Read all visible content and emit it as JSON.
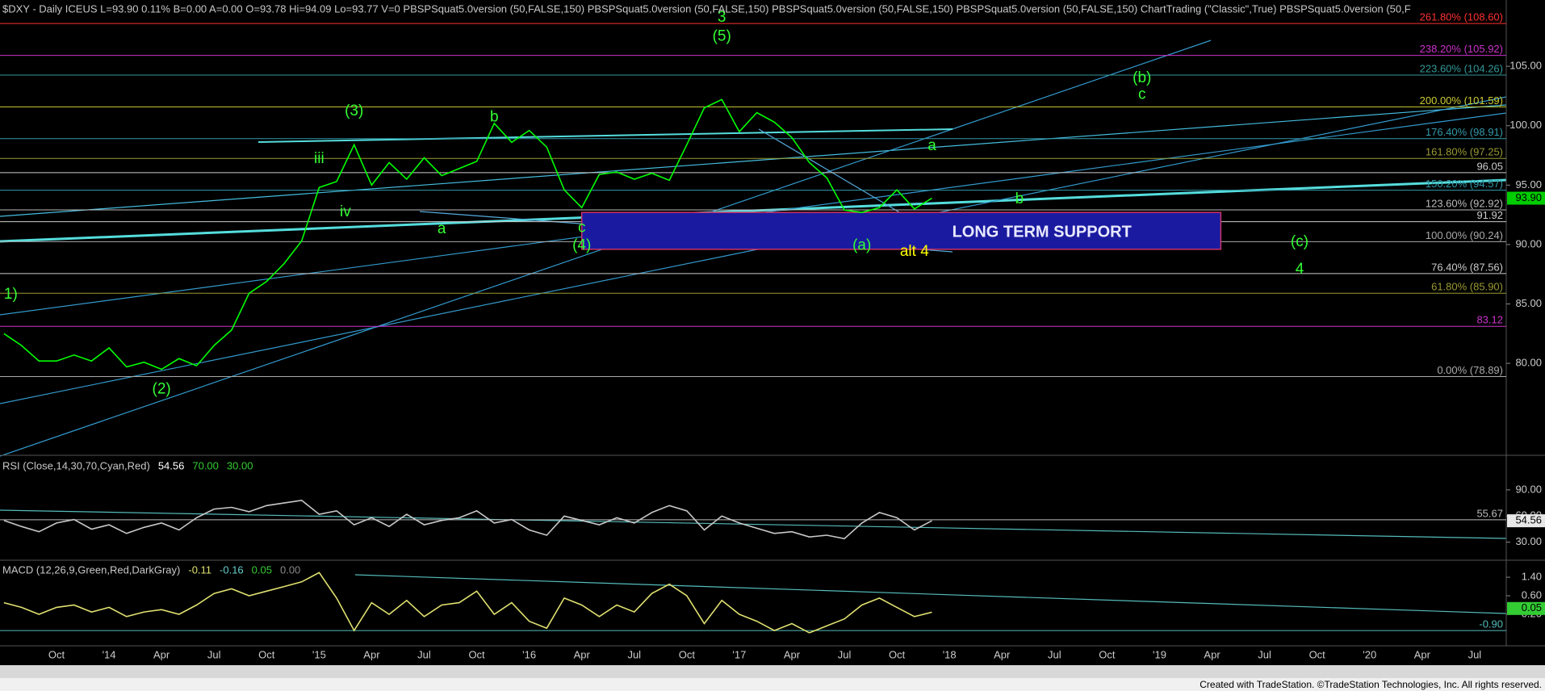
{
  "chart_data": [
    {
      "type": "line",
      "title": "$DXY - Daily ICEUS L=93.90 0.11% B=0.00 A=0.00 O=93.78 Hi=94.09 Lo=93.77 V=0 PBSPSquat5.0version (50,FALSE,150) PBSPSquat5.0version (50,FALSE,150) PBSPSquat5.0version (50,FALSE,150) PBSPSquat5.0version (50,FALSE,150) ChartTrading (\"Classic\",True) PBSPSquat5.0version (50,F",
      "color": "#00ff00",
      "values": [
        82.5,
        81.5,
        80.2,
        80.2,
        80.7,
        80.2,
        81.3,
        79.7,
        80.1,
        79.5,
        80.4,
        79.8,
        81.5,
        82.8,
        85.9,
        86.9,
        88.4,
        90.3,
        94.8,
        95.3,
        98.4,
        95.0,
        96.9,
        95.5,
        97.3,
        95.8,
        96.4,
        97.0,
        100.2,
        98.6,
        99.6,
        98.2,
        94.6,
        93.1,
        95.9,
        96.1,
        95.5,
        96.0,
        95.4,
        98.4,
        101.5,
        102.2,
        99.5,
        101.1,
        100.3,
        99.0,
        96.9,
        95.6,
        92.9,
        92.7,
        93.1,
        94.6,
        93.0,
        93.9,
        null,
        null,
        null,
        null,
        null,
        null,
        null,
        null,
        null,
        null,
        null,
        null,
        null,
        null,
        null,
        null,
        null,
        null,
        null,
        null,
        null,
        null,
        null,
        null,
        null,
        null,
        null,
        null,
        null,
        null,
        null,
        null
      ],
      "ylim": [
        72.4,
        109.9
      ],
      "yticks": [
        {
          "value": 80,
          "label": "80.00"
        },
        {
          "value": 85,
          "label": "85.00"
        },
        {
          "value": 90,
          "label": "90.00"
        },
        {
          "value": 95,
          "label": "95.00"
        },
        {
          "value": 100,
          "label": "100.00"
        },
        {
          "value": 105,
          "label": "105.00"
        }
      ],
      "tag": {
        "value": 93.9,
        "label": "93.90",
        "color": "#00cc00"
      },
      "levels": [
        {
          "value": 108.6,
          "label": "261.80% (108.60)",
          "color": "#ff3030"
        },
        {
          "value": 105.92,
          "label": "238.20% (105.92)",
          "color": "#cc33cc"
        },
        {
          "value": 104.26,
          "label": "223.60% (104.26)",
          "color": "#339999"
        },
        {
          "value": 101.59,
          "label": "200.00% (101.59)",
          "color": "#cccc33"
        },
        {
          "value": 98.91,
          "label": "176.40% (98.91)",
          "color": "#3399aa"
        },
        {
          "value": 97.25,
          "label": "161.80% (97.25)",
          "color": "#999933"
        },
        {
          "value": 96.05,
          "label": "96.05",
          "color": "#cccccc"
        },
        {
          "value": 94.57,
          "label": "150.20% (94.57)",
          "color": "#3399aa"
        },
        {
          "value": 92.92,
          "label": "123.60% (92.92)",
          "color": "#bbbbbb"
        },
        {
          "value": 91.92,
          "label": "91.92",
          "color": "#cccccc"
        },
        {
          "value": 90.24,
          "label": "100.00% (90.24)",
          "color": "#aaaaaa"
        },
        {
          "value": 87.56,
          "label": "76.40% (87.56)",
          "color": "#cccccc"
        },
        {
          "value": 85.9,
          "label": "61.80% (85.90)",
          "color": "#999933"
        },
        {
          "value": 83.12,
          "label": "83.12",
          "color": "#cc33cc"
        },
        {
          "value": 78.89,
          "label": "0.00% (78.89)",
          "color": "#aaaaaa"
        }
      ],
      "zones": [
        {
          "label": "LONG TERM SUPPORT",
          "x0": 33,
          "x1": 69.5,
          "ymin": 89.6,
          "ymax": 92.7,
          "color": "#1a1aa0"
        }
      ],
      "annotations": [
        {
          "text": "1)",
          "x": 0,
          "y": 85.8,
          "color": "#33ff33"
        },
        {
          "text": "(2)",
          "x": 9,
          "y": 77.8,
          "color": "#33ff33"
        },
        {
          "text": "(3)",
          "x": 20,
          "y": 101.2,
          "color": "#33ff33"
        },
        {
          "text": "iii",
          "x": 18,
          "y": 97.2,
          "color": "#33ff33"
        },
        {
          "text": "iv",
          "x": 19.5,
          "y": 92.7,
          "color": "#33ff33"
        },
        {
          "text": "a",
          "x": 25,
          "y": 91.3,
          "color": "#33ff33"
        },
        {
          "text": "b",
          "x": 28,
          "y": 100.7,
          "color": "#33ff33"
        },
        {
          "text": "c",
          "x": 33,
          "y": 91.4,
          "color": "#33ff33"
        },
        {
          "text": "(4)",
          "x": 33,
          "y": 89.9,
          "color": "#33ff33"
        },
        {
          "text": "(5)",
          "x": 41,
          "y": 107.5,
          "color": "#33ff33"
        },
        {
          "text": "3",
          "x": 41,
          "y": 109.1,
          "color": "#33ff33"
        },
        {
          "text": "(a)",
          "x": 49,
          "y": 89.9,
          "color": "#33ff33"
        },
        {
          "text": "alt  4",
          "x": 52,
          "y": 89.4,
          "color": "#ffff00"
        },
        {
          "text": "(b)",
          "x": 65,
          "y": 104.0,
          "color": "#33ff33"
        },
        {
          "text": "c",
          "x": 65,
          "y": 102.6,
          "color": "#33ff33"
        },
        {
          "text": "a",
          "x": 53,
          "y": 98.3,
          "color": "#33ff33"
        },
        {
          "text": "b",
          "x": 58,
          "y": 93.8,
          "color": "#33ff33"
        },
        {
          "text": "(c)",
          "x": 74,
          "y": 90.2,
          "color": "#33ff33"
        },
        {
          "text": "4",
          "x": 74,
          "y": 87.9,
          "color": "#33ff33"
        }
      ]
    },
    {
      "type": "line",
      "title": "RSI (Close,14,30,70,Cyan,Red)",
      "legend": [
        {
          "text": "54.56",
          "color": "#ffffff"
        },
        {
          "text": "70.00",
          "color": "#33cc33"
        },
        {
          "text": "30.00",
          "color": "#33cc33"
        }
      ],
      "color": "#c8c8c8",
      "values": [
        55,
        48,
        42,
        52,
        56,
        45,
        50,
        40,
        47,
        52,
        44,
        58,
        68,
        70,
        65,
        72,
        75,
        78,
        62,
        66,
        50,
        58,
        48,
        62,
        50,
        55,
        58,
        66,
        52,
        56,
        44,
        38,
        60,
        55,
        50,
        58,
        52,
        64,
        72,
        66,
        44,
        60,
        52,
        46,
        40,
        42,
        36,
        38,
        34,
        52,
        64,
        58,
        44,
        54.56,
        null,
        null,
        null,
        null,
        null,
        null,
        null,
        null,
        null,
        null,
        null,
        null,
        null,
        null,
        null,
        null,
        null,
        null,
        null,
        null,
        null,
        null,
        null,
        null,
        null,
        null,
        null,
        null,
        null,
        null,
        null,
        null
      ],
      "ylim": [
        13,
        126
      ],
      "yticks": [
        {
          "value": 30,
          "label": "30.00"
        },
        {
          "value": 60,
          "label": "60.00"
        },
        {
          "value": 90,
          "label": "90.00"
        }
      ],
      "tag": {
        "value": 54.56,
        "label": "54.56",
        "color": "#e8e8e8"
      },
      "levels": [
        {
          "value": 55.67,
          "label": "55.67",
          "color": "#bbbbbb"
        }
      ]
    },
    {
      "type": "line",
      "title": "MACD (12,26,9,Green,Red,DarkGray)",
      "legend": [
        {
          "text": "-0.11",
          "color": "#e0e070"
        },
        {
          "text": "-0.16",
          "color": "#66cccc"
        },
        {
          "text": "0.05",
          "color": "#33cc33"
        },
        {
          "text": "0.00",
          "color": "#888888"
        }
      ],
      "color": "#e0e070",
      "values": [
        0.3,
        0.1,
        -0.2,
        0.1,
        0.2,
        -0.1,
        0.1,
        -0.3,
        -0.1,
        0.0,
        -0.2,
        0.2,
        0.7,
        0.9,
        0.6,
        0.8,
        1.0,
        1.2,
        1.6,
        0.5,
        -0.9,
        0.3,
        -0.2,
        0.4,
        -0.3,
        0.2,
        0.3,
        0.8,
        -0.2,
        0.3,
        -0.5,
        -0.8,
        0.5,
        0.2,
        -0.3,
        0.2,
        -0.1,
        0.7,
        1.1,
        0.6,
        -0.6,
        0.4,
        -0.2,
        -0.5,
        -0.9,
        -0.6,
        -1.0,
        -0.7,
        -0.4,
        0.2,
        0.5,
        0.1,
        -0.3,
        -0.11,
        null,
        null,
        null,
        null,
        null,
        null,
        null,
        null,
        null,
        null,
        null,
        null,
        null,
        null,
        null,
        null,
        null,
        null,
        null,
        null,
        null,
        null,
        null,
        null,
        null,
        null,
        null,
        null,
        null,
        null,
        null,
        null
      ],
      "ylim": [
        -1.56,
        2.03
      ],
      "yticks": [
        {
          "value": 1.4,
          "label": "1.40"
        },
        {
          "value": 0.6,
          "label": "0.60"
        },
        {
          "value": -0.2,
          "label": "-0.20"
        }
      ],
      "tag": {
        "value": 0.05,
        "label": "0.05",
        "color": "#33cc33"
      },
      "levels": [
        {
          "value": -0.9,
          "label": "-0.90",
          "color": "#55bbbb"
        }
      ],
      "categories": [
        null,
        null,
        null,
        "Oct",
        null,
        null,
        "'14",
        null,
        null,
        "Apr",
        null,
        null,
        "Jul",
        null,
        null,
        "Oct",
        null,
        null,
        "'15",
        null,
        null,
        "Apr",
        null,
        null,
        "Jul",
        null,
        null,
        "Oct",
        null,
        null,
        "'16",
        null,
        null,
        "Apr",
        null,
        null,
        "Jul",
        null,
        null,
        "Oct",
        null,
        null,
        "'17",
        null,
        null,
        "Apr",
        null,
        null,
        "Jul",
        null,
        null,
        "Oct",
        null,
        null,
        "'18",
        null,
        null,
        "Apr",
        null,
        null,
        "Jul",
        null,
        null,
        "Oct",
        null,
        null,
        "'19",
        null,
        null,
        "Apr",
        null,
        null,
        "Jul",
        null,
        null,
        "Oct",
        null,
        null,
        "'20",
        null,
        null,
        "Apr",
        null,
        null,
        "Jul",
        null
      ]
    }
  ],
  "footer": "Created with TradeStation. ©TradeStation Technologies, Inc. All rights reserved."
}
